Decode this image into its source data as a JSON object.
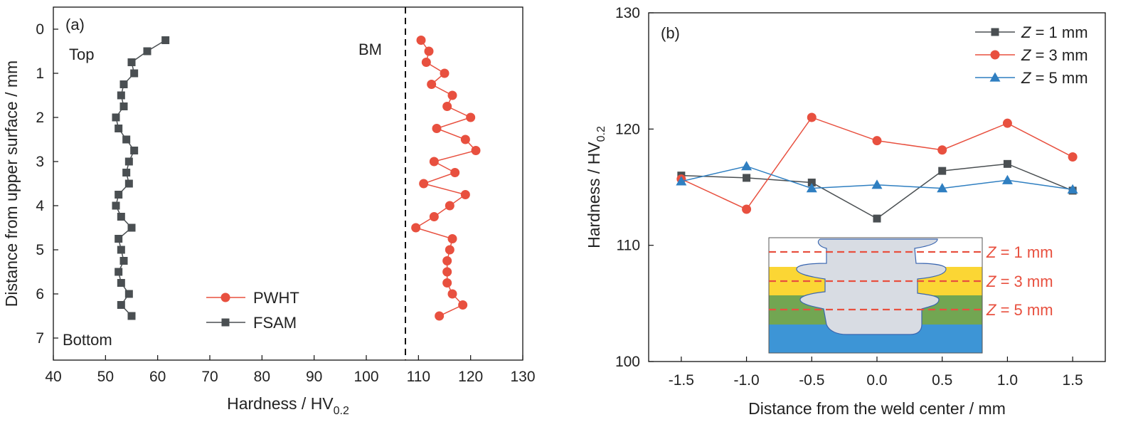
{
  "chart_data": [
    {
      "type": "scatter",
      "panel_label": "(a)",
      "xlabel": "Hardness / HV",
      "xlabel_sub": "0.2",
      "ylabel": "Distance from upper surface / mm",
      "xlim": [
        40,
        130
      ],
      "ylim": [
        7.5,
        -0.5
      ],
      "y_inverted": true,
      "x_ticks": [
        40,
        50,
        60,
        70,
        80,
        90,
        100,
        110,
        120,
        130
      ],
      "y_ticks": [
        0,
        1,
        2,
        3,
        4,
        5,
        6,
        7
      ],
      "annotations": {
        "top": "Top",
        "bottom": "Bottom",
        "bm": "BM"
      },
      "reference_line": {
        "x": 107.5,
        "style": "dashed",
        "color": "#111111"
      },
      "legend_position": "bottom-center",
      "series": [
        {
          "name": "PWHT",
          "marker": "circle",
          "color": "#e8503f",
          "x": [
            110.5,
            112,
            111.5,
            115,
            112.5,
            116.5,
            115.5,
            120,
            113.5,
            119,
            121,
            113,
            117,
            111,
            119,
            116,
            113,
            109.5,
            116.5,
            116,
            115.5,
            115.5,
            115.5,
            116.5,
            118.5,
            114
          ],
          "y": [
            0.25,
            0.5,
            0.75,
            1.0,
            1.25,
            1.5,
            1.75,
            2.0,
            2.25,
            2.5,
            2.75,
            3.0,
            3.25,
            3.5,
            3.75,
            4.0,
            4.25,
            4.5,
            4.75,
            5.0,
            5.25,
            5.5,
            5.75,
            6.0,
            6.25,
            6.5
          ]
        },
        {
          "name": "FSAM",
          "marker": "square",
          "color": "#4a4f52",
          "x": [
            61.5,
            58,
            55,
            55.5,
            53.5,
            53,
            53.5,
            52,
            52.5,
            54,
            55.5,
            54.5,
            54,
            54.5,
            52.5,
            52,
            53,
            55,
            52.5,
            53,
            53.5,
            52.5,
            53,
            54.5,
            53,
            55
          ],
          "y": [
            0.25,
            0.5,
            0.75,
            1.0,
            1.25,
            1.5,
            1.75,
            2.0,
            2.25,
            2.5,
            2.75,
            3.0,
            3.25,
            3.5,
            3.75,
            4.0,
            4.25,
            4.5,
            4.75,
            5.0,
            5.25,
            5.5,
            5.75,
            6.0,
            6.25,
            6.5
          ]
        }
      ]
    },
    {
      "type": "line",
      "panel_label": "(b)",
      "xlabel": "Distance from the weld center / mm",
      "ylabel": "Hardness / HV",
      "ylabel_sub": "0.2",
      "xlim": [
        -1.75,
        1.75
      ],
      "ylim": [
        100,
        130
      ],
      "x_ticks": [
        -1.5,
        -1.0,
        -0.5,
        0.0,
        0.5,
        1.0,
        1.5
      ],
      "x_tick_labels": [
        "-1.5",
        "-1.0",
        "-0.5",
        "0.0",
        "0.5",
        "1.0",
        "1.5"
      ],
      "y_ticks": [
        100,
        110,
        120,
        130
      ],
      "legend_position": "top-right",
      "x": [
        -1.5,
        -1.0,
        -0.5,
        0.0,
        0.5,
        1.0,
        1.5
      ],
      "series": [
        {
          "name_var": "Z",
          "name_rest": " = 1 mm",
          "marker": "square",
          "color": "#4a4f52",
          "values": [
            116,
            115.8,
            115.4,
            112.3,
            116.4,
            117,
            114.7
          ]
        },
        {
          "name_var": "Z",
          "name_rest": " = 3 mm",
          "marker": "circle",
          "color": "#e8503f",
          "values": [
            115.7,
            113.1,
            121,
            119,
            118.2,
            120.5,
            117.6
          ]
        },
        {
          "name_var": "Z",
          "name_rest": " = 5 mm",
          "marker": "triangle",
          "color": "#2f7fc1",
          "values": [
            115.5,
            116.8,
            114.9,
            115.2,
            114.9,
            115.6,
            114.8
          ]
        }
      ],
      "inset": {
        "layer_colors": [
          "#ffffff",
          "#fbd634",
          "#72a652",
          "#3d95d6"
        ],
        "weld_fill": "#d8dce3",
        "outline_color": "#3a66b0",
        "line_color": "#e8503f",
        "labels": [
          {
            "var": "Z",
            "rest": " = 1 mm"
          },
          {
            "var": "Z",
            "rest": " = 3 mm"
          },
          {
            "var": "Z",
            "rest": " = 5 mm"
          }
        ]
      }
    }
  ]
}
